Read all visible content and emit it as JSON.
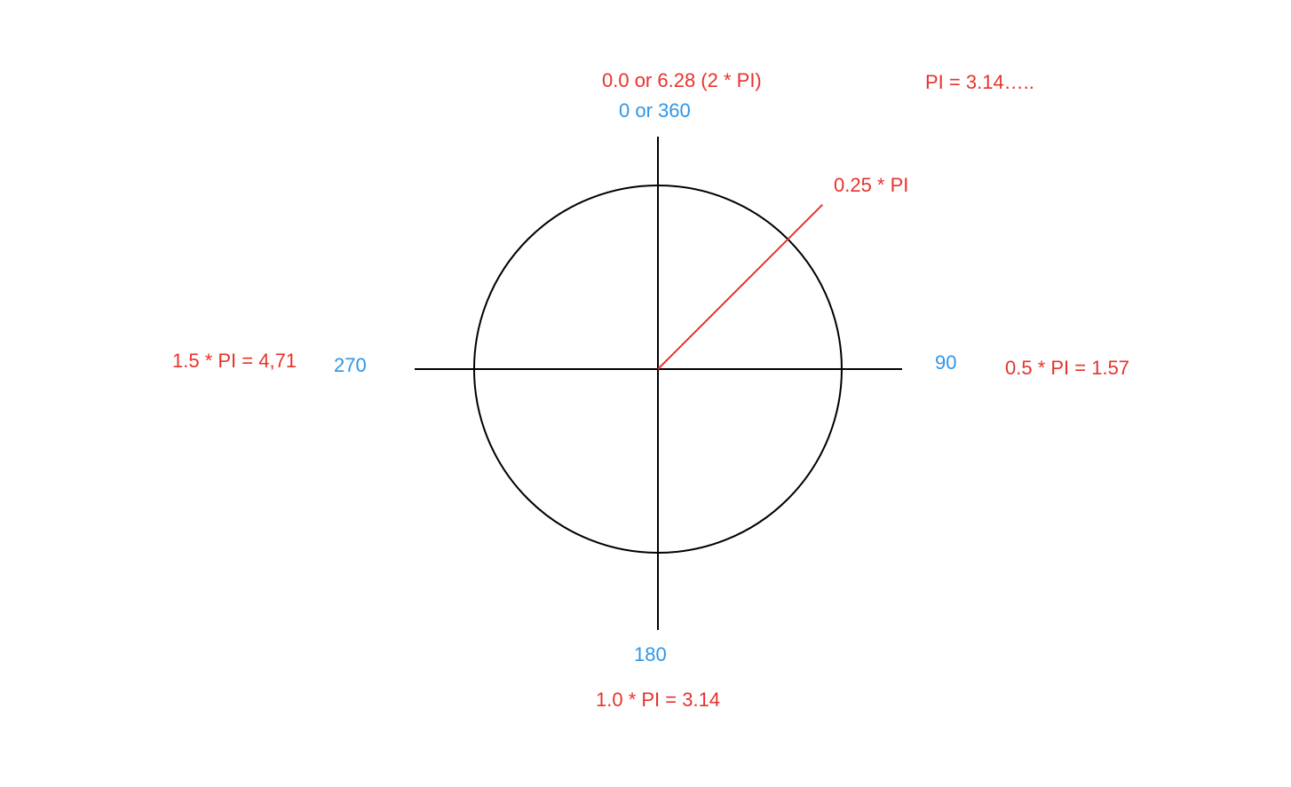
{
  "colors": {
    "radian": "#e8322c",
    "degree": "#2f96e8",
    "axes": "#000000",
    "circle": "#000000",
    "angle_line": "#e8322c"
  },
  "diagram": {
    "angle_marker_degrees": 45,
    "labels": {
      "top_radians": "0.0 or 6.28 (2 * PI)",
      "top_degrees": "0 or 360",
      "pi_value": "PI = 3.14…..",
      "angle_radians": "0.25 * PI",
      "left_radians": "1.5 * PI = 4,71",
      "left_degrees": "270",
      "right_degrees": "90",
      "right_radians": "0.5 * PI = 1.57",
      "bottom_degrees": "180",
      "bottom_radians": "1.0 * PI = 3.14"
    }
  }
}
